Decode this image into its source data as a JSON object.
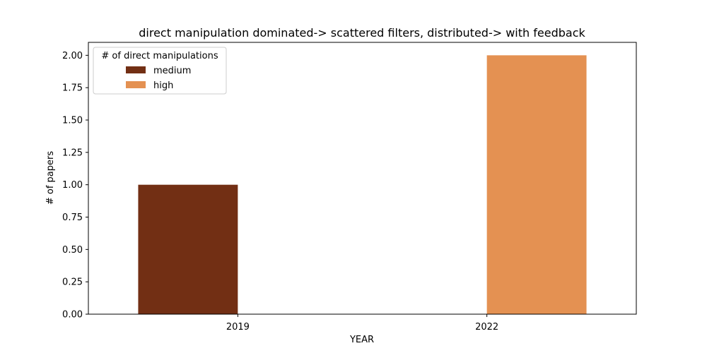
{
  "chart_data": {
    "type": "bar",
    "title": "direct manipulation dominated-> scattered filters, distributed-> with feedback",
    "xlabel": "YEAR",
    "ylabel": "# of papers",
    "categories": [
      "2019",
      "2022"
    ],
    "series": [
      {
        "name": "medium",
        "values": [
          1,
          0
        ],
        "color": "#722f14"
      },
      {
        "name": "high",
        "values": [
          0,
          2
        ],
        "color": "#e49152"
      }
    ],
    "ylim": [
      0,
      2.1
    ],
    "yticks": [
      "0.00",
      "0.25",
      "0.50",
      "0.75",
      "1.00",
      "1.25",
      "1.50",
      "1.75",
      "2.00"
    ],
    "grid": false,
    "legend": {
      "title": "# of direct manipulations",
      "position": "top-left"
    }
  }
}
